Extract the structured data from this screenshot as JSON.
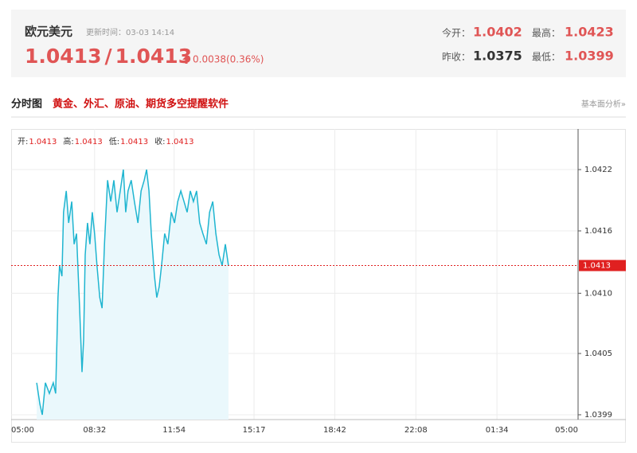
{
  "header": {
    "title": "欧元美元",
    "update_time": "更新时间：03-03 14:14",
    "price": "1.0413",
    "separator": "/",
    "price_alt": "1.0413",
    "change": "0.0038(0.36%)",
    "stats": [
      {
        "label": "今开：",
        "value": "1.0402"
      },
      {
        "label": "最高：",
        "value": "1.0423"
      },
      {
        "label": "昨收：",
        "value": "1.0375"
      },
      {
        "label": "最低：",
        "value": "1.0399"
      }
    ]
  },
  "section": {
    "title": "分时图",
    "promo": "黄金、外汇、原油、期货多空提醒软件",
    "link": "基本面分析»"
  },
  "chart_data": {
    "type": "line",
    "color": "#1fb5d0",
    "area_color": "#eaf8fc",
    "info": [
      {
        "label": "开:",
        "value": "1.0413"
      },
      {
        "label": "高:",
        "value": "1.0413"
      },
      {
        "label": "低:",
        "value": "1.0413"
      },
      {
        "label": "收:",
        "value": "1.0413"
      }
    ],
    "x": [
      65,
      73,
      79,
      87,
      97,
      107,
      113,
      119,
      123,
      129,
      133,
      140,
      146,
      154,
      160,
      166,
      174,
      180,
      184,
      188,
      194,
      200,
      206,
      212,
      218,
      225,
      231,
      237,
      245,
      253,
      261,
      269,
      277,
      285,
      291,
      297,
      305,
      313,
      322,
      330,
      338,
      344,
      350,
      356,
      364,
      370,
      376,
      382,
      390,
      398,
      407,
      415,
      423,
      431,
      439,
      447,
      455,
      463,
      471,
      479,
      487,
      496,
      504,
      512,
      520,
      528,
      536,
      544,
      552
    ],
    "values": [
      1.0402,
      1.04,
      1.0399,
      1.0402,
      1.0401,
      1.0402,
      1.0401,
      1.041,
      1.0413,
      1.0412,
      1.0418,
      1.042,
      1.0417,
      1.0419,
      1.0415,
      1.0416,
      1.0409,
      1.0403,
      1.0406,
      1.0414,
      1.0417,
      1.0415,
      1.0418,
      1.0416,
      1.0413,
      1.041,
      1.0409,
      1.0415,
      1.0421,
      1.0419,
      1.0421,
      1.0418,
      1.042,
      1.0422,
      1.0418,
      1.042,
      1.0421,
      1.0419,
      1.0417,
      1.042,
      1.0421,
      1.0422,
      1.042,
      1.0416,
      1.0412,
      1.041,
      1.0411,
      1.0413,
      1.0416,
      1.0415,
      1.0418,
      1.0417,
      1.0419,
      1.042,
      1.0419,
      1.0418,
      1.042,
      1.0419,
      1.042,
      1.0417,
      1.0416,
      1.0415,
      1.0418,
      1.0419,
      1.0416,
      1.0414,
      1.0413,
      1.0415,
      1.0413
    ],
    "xlim": [
      0,
      1440
    ],
    "xticks": [
      {
        "value": 0,
        "label": "05:00"
      },
      {
        "value": 212,
        "label": "08:32"
      },
      {
        "value": 414,
        "label": "11:54"
      },
      {
        "value": 617,
        "label": "15:17"
      },
      {
        "value": 822,
        "label": "18:42"
      },
      {
        "value": 1028,
        "label": "22:08"
      },
      {
        "value": 1234,
        "label": "01:34"
      },
      {
        "value": 1440,
        "label": "05:00"
      }
    ],
    "ylim": [
      1.039855,
      1.042581
    ],
    "yticks": [
      {
        "value": 1.0399,
        "label": "1.0399"
      },
      {
        "value": 1.040475,
        "label": "1.0405"
      },
      {
        "value": 1.04104,
        "label": "1.0410"
      },
      {
        "value": 1.041625,
        "label": "1.0416"
      },
      {
        "value": 1.0422,
        "label": "1.0422"
      }
    ],
    "current": {
      "value": 1.0413,
      "label": "1.0413",
      "color": "#e02020"
    },
    "grid": true
  }
}
